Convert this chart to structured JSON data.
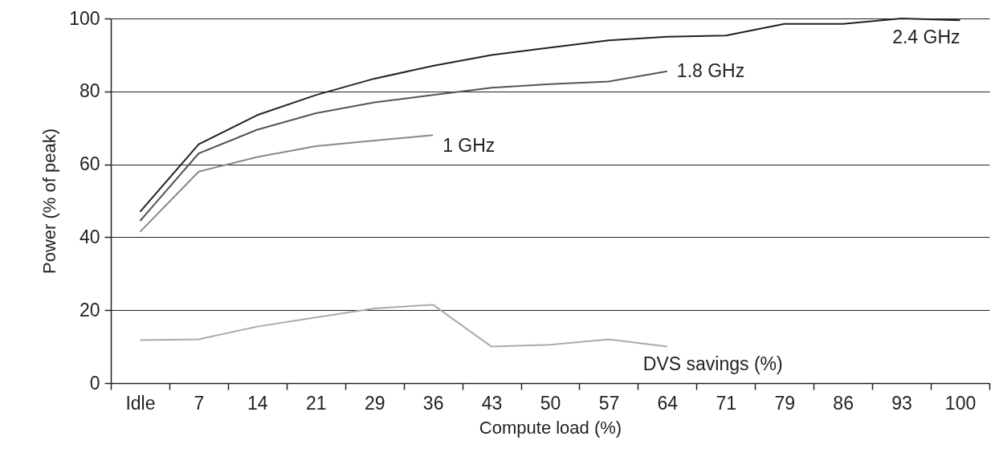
{
  "chart_data": {
    "type": "line",
    "xlabel": "Compute load (%)",
    "ylabel": "Power (% of peak)",
    "categories": [
      "Idle",
      "7",
      "14",
      "21",
      "29",
      "36",
      "43",
      "50",
      "57",
      "64",
      "71",
      "79",
      "86",
      "93",
      "100"
    ],
    "series": [
      {
        "name": "2.4 GHz",
        "color": "#222222",
        "values": [
          47,
          65.5,
          73.5,
          79,
          83.5,
          87,
          90,
          92,
          94,
          95,
          95.3,
          98.5,
          98.5,
          100,
          99.5
        ]
      },
      {
        "name": "1.8 GHz",
        "color": "#555555",
        "values": [
          44.5,
          63,
          69.5,
          74,
          77,
          79,
          81,
          82,
          82.7,
          85.5,
          null,
          null,
          null,
          null,
          null
        ]
      },
      {
        "name": "1 GHz",
        "color": "#888888",
        "values": [
          41.5,
          58,
          62,
          65,
          66.5,
          68,
          null,
          null,
          null,
          null,
          null,
          null,
          null,
          null,
          null
        ]
      },
      {
        "name": "DVS savings (%)",
        "color": "#aaaaaa",
        "values": [
          11.8,
          12,
          15.5,
          18,
          20.5,
          21.5,
          10,
          10.5,
          12,
          10,
          null,
          null,
          null,
          null,
          null
        ]
      }
    ],
    "ylim": [
      0,
      100
    ],
    "yticks": [
      0,
      20,
      40,
      60,
      80,
      100
    ],
    "grid": "y",
    "legend": false,
    "marker": "none",
    "line_style": "solid"
  }
}
